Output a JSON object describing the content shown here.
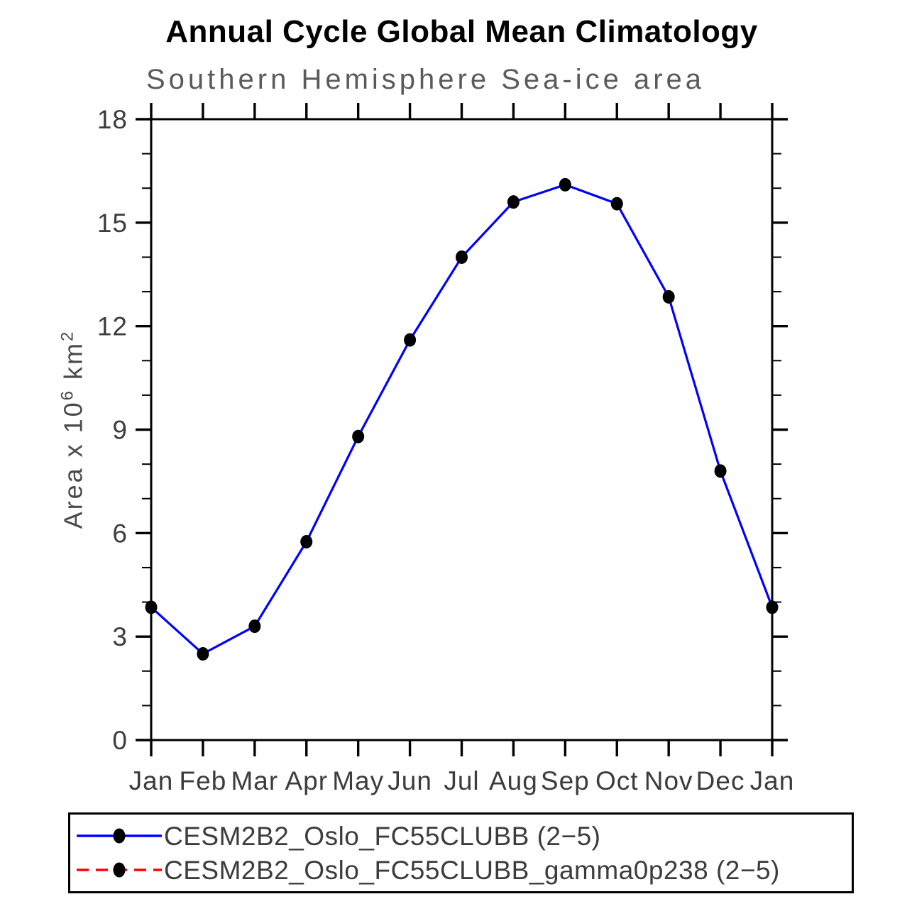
{
  "header": {
    "title": "Annual Cycle Global Mean Climatology",
    "subtitle": "Southern Hemisphere Sea-ice area"
  },
  "axes": {
    "y_label_prefix": "Area x 10",
    "y_label_sup1": "6",
    "y_label_unit": " km",
    "y_label_sup2": "2"
  },
  "chart_data": {
    "type": "line",
    "title": "Annual Cycle Global Mean Climatology",
    "subtitle": "Southern Hemisphere Sea-ice area",
    "categories": [
      "Jan",
      "Feb",
      "Mar",
      "Apr",
      "May",
      "Jun",
      "Jul",
      "Aug",
      "Sep",
      "Oct",
      "Nov",
      "Dec",
      "Jan"
    ],
    "ylabel": "Area x 10^6 km^2",
    "ylim": [
      0,
      18
    ],
    "y_major_ticks": [
      0,
      3,
      6,
      9,
      12,
      15,
      18
    ],
    "y_minor_tick_interval": 1,
    "grid": false,
    "legend_position": "bottom",
    "frame_color": "#000000",
    "series": [
      {
        "name": "CESM2B2_Oslo_FC55CLUBB (2−5)",
        "color": "#0000ff",
        "line_style": "solid",
        "marker": "filled-circle",
        "marker_color": "#000000",
        "visible": true,
        "values": [
          3.85,
          2.5,
          3.3,
          5.75,
          8.8,
          11.6,
          14.0,
          15.6,
          16.1,
          15.55,
          12.85,
          7.8,
          3.85
        ]
      },
      {
        "name": "CESM2B2_Oslo_FC55CLUBB_gamma0p238 (2−5)",
        "color": "#ff0000",
        "line_style": "dashed",
        "marker": "filled-circle",
        "marker_color": "#000000",
        "visible": false,
        "values": []
      }
    ]
  }
}
